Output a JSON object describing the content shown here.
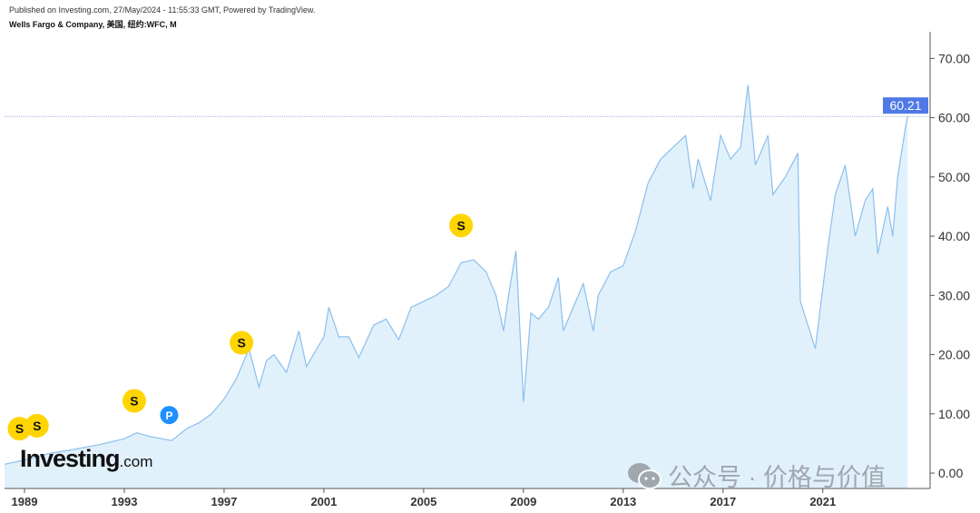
{
  "header": {
    "published": "Published on Investing.com, 27/May/2024 - 11:55:33 GMT, Powered by TradingView.",
    "title": "Wells Fargo & Company, 美国, 纽约:WFC, M"
  },
  "logo": {
    "main": "Investing",
    "suffix": ".com"
  },
  "watermark": {
    "text": "公众号 · 价格与价值",
    "icon": "wechat-icon"
  },
  "colors": {
    "line": "#8bbfee",
    "fill": "#e1f1fb",
    "label": "#4e79e6",
    "event_s": "#ffd500",
    "event_p": "#1e90ff"
  },
  "chart_data": {
    "type": "area",
    "title": "Wells Fargo & Company, 美国, 纽约:WFC, M",
    "xlabel": "",
    "ylabel": "",
    "xlim": [
      1988.2,
      2025.3
    ],
    "ylim": [
      -2.6,
      74.5
    ],
    "xticks": [
      1989,
      1993,
      1997,
      2001,
      2005,
      2009,
      2013,
      2017,
      2021
    ],
    "yticks": [
      0,
      10,
      20,
      30,
      40,
      50,
      60,
      70
    ],
    "ytick_labels": [
      "0.00",
      "10.00",
      "20.00",
      "30.00",
      "40.00",
      "50.00",
      "60.00",
      "70.00"
    ],
    "last_value": 60.21,
    "last_label": "60.21",
    "grid": false,
    "points": [
      [
        1988.2,
        1.5
      ],
      [
        1989,
        2.2
      ],
      [
        1990,
        3.3
      ],
      [
        1991,
        4.0
      ],
      [
        1992,
        4.8
      ],
      [
        1993,
        5.8
      ],
      [
        1993.5,
        6.8
      ],
      [
        1994,
        6.2
      ],
      [
        1994.9,
        5.5
      ],
      [
        1995.5,
        7.5
      ],
      [
        1996,
        8.5
      ],
      [
        1996.5,
        10
      ],
      [
        1997,
        12.5
      ],
      [
        1997.5,
        16
      ],
      [
        1998,
        21
      ],
      [
        1998.4,
        14.5
      ],
      [
        1998.7,
        19
      ],
      [
        1999,
        20
      ],
      [
        1999.5,
        17
      ],
      [
        2000,
        24
      ],
      [
        2000.3,
        18
      ],
      [
        2001,
        23
      ],
      [
        2001.2,
        28
      ],
      [
        2001.6,
        23
      ],
      [
        2002,
        23
      ],
      [
        2002.4,
        19.5
      ],
      [
        2003,
        25
      ],
      [
        2003.5,
        26
      ],
      [
        2004,
        22.5
      ],
      [
        2004.5,
        28
      ],
      [
        2005,
        29
      ],
      [
        2005.5,
        30
      ],
      [
        2006,
        31.5
      ],
      [
        2006.5,
        35.5
      ],
      [
        2007,
        36
      ],
      [
        2007.5,
        34
      ],
      [
        2007.9,
        30
      ],
      [
        2008.2,
        24
      ],
      [
        2008.4,
        30
      ],
      [
        2008.7,
        37.5
      ],
      [
        2009.0,
        12
      ],
      [
        2009.3,
        27
      ],
      [
        2009.6,
        26
      ],
      [
        2010,
        28
      ],
      [
        2010.4,
        33
      ],
      [
        2010.6,
        24
      ],
      [
        2011,
        28
      ],
      [
        2011.4,
        32
      ],
      [
        2011.8,
        24
      ],
      [
        2012,
        30
      ],
      [
        2012.5,
        34
      ],
      [
        2013,
        35
      ],
      [
        2013.5,
        41
      ],
      [
        2014,
        49
      ],
      [
        2014.5,
        53
      ],
      [
        2015,
        55
      ],
      [
        2015.5,
        57
      ],
      [
        2015.8,
        48
      ],
      [
        2016,
        53
      ],
      [
        2016.5,
        46
      ],
      [
        2016.9,
        57
      ],
      [
        2017.3,
        53
      ],
      [
        2017.7,
        55
      ],
      [
        2018.0,
        65.5
      ],
      [
        2018.3,
        52
      ],
      [
        2018.8,
        57
      ],
      [
        2019,
        47
      ],
      [
        2019.5,
        50
      ],
      [
        2020,
        54
      ],
      [
        2020.1,
        29
      ],
      [
        2020.7,
        21
      ],
      [
        2021.2,
        38
      ],
      [
        2021.5,
        47
      ],
      [
        2021.9,
        52
      ],
      [
        2022.3,
        40
      ],
      [
        2022.7,
        46
      ],
      [
        2023.0,
        48
      ],
      [
        2023.2,
        37
      ],
      [
        2023.6,
        45
      ],
      [
        2023.8,
        40
      ],
      [
        2024.0,
        50
      ],
      [
        2024.3,
        58
      ],
      [
        2024.4,
        60.21
      ]
    ],
    "events": [
      {
        "label": "S",
        "x": 1988.8,
        "y": 7.5
      },
      {
        "label": "S",
        "x": 1989.5,
        "y": 8
      },
      {
        "label": "S",
        "x": 1993.4,
        "y": 12.2
      },
      {
        "label": "P",
        "x": 1994.8,
        "y": 9.8
      },
      {
        "label": "S",
        "x": 1997.7,
        "y": 22
      },
      {
        "label": "S",
        "x": 2006.5,
        "y": 41.8
      }
    ]
  }
}
